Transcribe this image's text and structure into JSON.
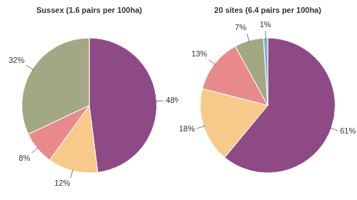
{
  "chart_data": [
    {
      "type": "pie",
      "title": "Sussex (1.6 pairs per 100ha)",
      "values": [
        48,
        12,
        8,
        32
      ],
      "value_labels": [
        "48%",
        "12%",
        "8%",
        "32%"
      ],
      "colors": [
        "#8e4a85",
        "#f7c98b",
        "#e88a8c",
        "#a3a884"
      ],
      "data_labels": true
    },
    {
      "type": "pie",
      "title": "20 sites (6.4 pairs per 100ha)",
      "values": [
        61,
        18,
        13,
        7,
        1
      ],
      "value_labels": [
        "61%",
        "18%",
        "13%",
        "7%",
        "1%"
      ],
      "colors": [
        "#8e4a85",
        "#f7c98b",
        "#e88a8c",
        "#a3a884",
        "#7fb2cf"
      ],
      "data_labels": true
    }
  ]
}
